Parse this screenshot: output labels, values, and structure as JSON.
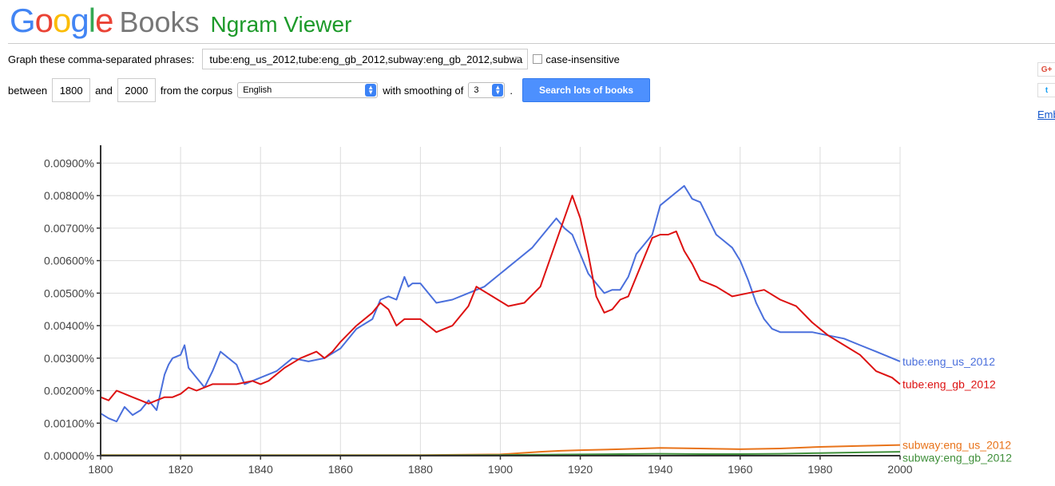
{
  "header": {
    "logo_google": [
      "G",
      "o",
      "o",
      "g",
      "l",
      "e"
    ],
    "logo_google_colors": [
      "#4285f4",
      "#ea4335",
      "#fbbc05",
      "#4285f4",
      "#34a853",
      "#ea4335"
    ],
    "logo_books": "Books",
    "title": "Ngram Viewer"
  },
  "form": {
    "phrases_label": "Graph these comma-separated phrases:",
    "phrases_value": "tube:eng_us_2012,tube:eng_gb_2012,subway:eng_gb_2012,subwa",
    "case_insensitive_label": "case-insensitive",
    "between_label": "between",
    "year_start": "1800",
    "and_label": "and",
    "year_end": "2000",
    "corpus_label": "from the corpus",
    "corpus_value": "English",
    "smoothing_label": "with smoothing of",
    "smoothing_value": "3",
    "smoothing_suffix": ".",
    "search_button": "Search lots of books"
  },
  "share": {
    "gplus_label": "G+",
    "twitter_label": "t",
    "embed_label": "Embed"
  },
  "chart_data": {
    "type": "line",
    "xlim": [
      1800,
      2000
    ],
    "ylim": [
      0,
      0.0095
    ],
    "x_ticks": [
      1800,
      1820,
      1840,
      1860,
      1880,
      1900,
      1920,
      1940,
      1960,
      1980,
      2000
    ],
    "y_ticks": [
      0,
      0.001,
      0.002,
      0.003,
      0.004,
      0.005,
      0.006,
      0.007,
      0.008,
      0.009
    ],
    "y_tick_labels": [
      "0.00000%",
      "0.00100%",
      "0.00200%",
      "0.00300%",
      "0.00400%",
      "0.00500%",
      "0.00600%",
      "0.00700%",
      "0.00800%",
      "0.00900%"
    ],
    "x_tick_labels": [
      "1800",
      "1820",
      "1840",
      "1860",
      "1880",
      "1900",
      "1920",
      "1940",
      "1960",
      "1980",
      "2000"
    ],
    "grid": true,
    "legend": "right-end labels",
    "series": [
      {
        "name": "tube:eng_us_2012",
        "color": "#4a6fdc",
        "x": [
          1800,
          1802,
          1804,
          1806,
          1808,
          1810,
          1812,
          1814,
          1816,
          1817,
          1818,
          1820,
          1821,
          1822,
          1824,
          1826,
          1828,
          1830,
          1832,
          1834,
          1836,
          1838,
          1840,
          1844,
          1848,
          1852,
          1856,
          1860,
          1864,
          1868,
          1870,
          1872,
          1874,
          1876,
          1877,
          1878,
          1880,
          1884,
          1888,
          1892,
          1896,
          1900,
          1904,
          1908,
          1912,
          1914,
          1916,
          1918,
          1920,
          1922,
          1924,
          1926,
          1928,
          1930,
          1932,
          1934,
          1936,
          1938,
          1940,
          1942,
          1944,
          1945,
          1946,
          1948,
          1950,
          1952,
          1954,
          1956,
          1958,
          1960,
          1962,
          1964,
          1966,
          1968,
          1970,
          1974,
          1978,
          1982,
          1986,
          1990,
          1994,
          1998,
          2000
        ],
        "values": [
          0.0013,
          0.00115,
          0.00105,
          0.0015,
          0.00125,
          0.0014,
          0.0017,
          0.0014,
          0.0025,
          0.0028,
          0.003,
          0.0031,
          0.0034,
          0.0027,
          0.0024,
          0.0021,
          0.0026,
          0.0032,
          0.003,
          0.0028,
          0.0022,
          0.0023,
          0.0024,
          0.0026,
          0.003,
          0.0029,
          0.003,
          0.0033,
          0.0039,
          0.0042,
          0.0048,
          0.0049,
          0.0048,
          0.0055,
          0.0052,
          0.0053,
          0.0053,
          0.0047,
          0.0048,
          0.005,
          0.0052,
          0.0056,
          0.006,
          0.0064,
          0.007,
          0.0073,
          0.007,
          0.0068,
          0.0062,
          0.0056,
          0.0053,
          0.005,
          0.0051,
          0.0051,
          0.0055,
          0.0062,
          0.0065,
          0.0068,
          0.0077,
          0.0079,
          0.0081,
          0.0082,
          0.0083,
          0.0079,
          0.0078,
          0.0073,
          0.0068,
          0.0066,
          0.0064,
          0.006,
          0.0054,
          0.0047,
          0.0042,
          0.0039,
          0.0038,
          0.0038,
          0.0038,
          0.0037,
          0.0036,
          0.0034,
          0.0032,
          0.003,
          0.0029
        ]
      },
      {
        "name": "tube:eng_gb_2012",
        "color": "#dd1111",
        "x": [
          1800,
          1802,
          1804,
          1806,
          1808,
          1810,
          1812,
          1814,
          1816,
          1818,
          1820,
          1822,
          1824,
          1826,
          1828,
          1830,
          1834,
          1838,
          1840,
          1842,
          1846,
          1850,
          1854,
          1856,
          1858,
          1860,
          1864,
          1868,
          1870,
          1872,
          1874,
          1876,
          1880,
          1884,
          1888,
          1892,
          1894,
          1898,
          1902,
          1906,
          1910,
          1914,
          1916,
          1918,
          1920,
          1922,
          1924,
          1926,
          1928,
          1930,
          1932,
          1934,
          1936,
          1938,
          1940,
          1942,
          1944,
          1946,
          1948,
          1950,
          1954,
          1958,
          1962,
          1966,
          1970,
          1974,
          1978,
          1982,
          1986,
          1990,
          1994,
          1998,
          2000
        ],
        "values": [
          0.0018,
          0.0017,
          0.002,
          0.0019,
          0.0018,
          0.0017,
          0.0016,
          0.0017,
          0.0018,
          0.0018,
          0.0019,
          0.0021,
          0.002,
          0.0021,
          0.0022,
          0.0022,
          0.0022,
          0.0023,
          0.0022,
          0.0023,
          0.0027,
          0.003,
          0.0032,
          0.003,
          0.0032,
          0.0035,
          0.004,
          0.0044,
          0.0047,
          0.0045,
          0.004,
          0.0042,
          0.0042,
          0.0038,
          0.004,
          0.0046,
          0.0052,
          0.0049,
          0.0046,
          0.0047,
          0.0052,
          0.0066,
          0.0073,
          0.008,
          0.0073,
          0.0062,
          0.0049,
          0.0044,
          0.0045,
          0.0048,
          0.0049,
          0.0055,
          0.0061,
          0.0067,
          0.0068,
          0.0068,
          0.0069,
          0.0063,
          0.0059,
          0.0054,
          0.0052,
          0.0049,
          0.005,
          0.0051,
          0.0048,
          0.0046,
          0.0041,
          0.0037,
          0.0034,
          0.0031,
          0.0026,
          0.0024,
          0.0022
        ]
      },
      {
        "name": "subway:eng_us_2012",
        "color": "#e8731a",
        "x": [
          1800,
          1880,
          1900,
          1905,
          1910,
          1915,
          1920,
          1930,
          1940,
          1950,
          1960,
          1970,
          1980,
          1990,
          2000
        ],
        "values": [
          2e-05,
          2e-05,
          4e-05,
          8e-05,
          0.00012,
          0.00015,
          0.00017,
          0.0002,
          0.00024,
          0.00022,
          0.0002,
          0.00022,
          0.00027,
          0.0003,
          0.00033
        ]
      },
      {
        "name": "subway:eng_gb_2012",
        "color": "#3f8f3a",
        "x": [
          1800,
          1880,
          1900,
          1910,
          1920,
          1930,
          1940,
          1950,
          1960,
          1970,
          1980,
          1990,
          2000
        ],
        "values": [
          1e-05,
          1e-05,
          2e-05,
          3e-05,
          4e-05,
          5e-05,
          6e-05,
          5e-05,
          5e-05,
          6e-05,
          8e-05,
          0.0001,
          0.00012
        ]
      }
    ]
  }
}
